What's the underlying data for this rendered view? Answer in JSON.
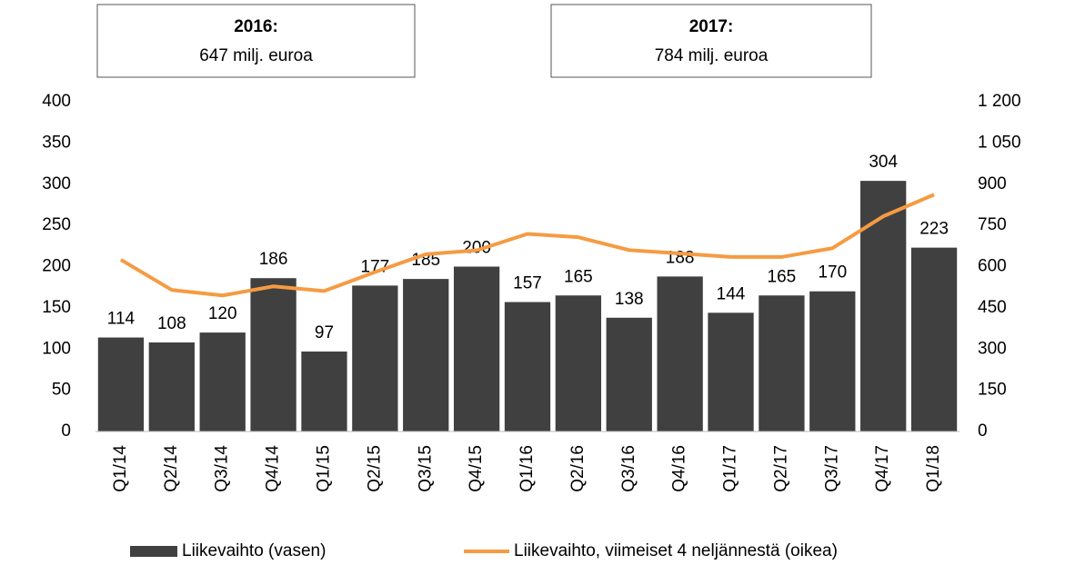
{
  "chart_data": {
    "type": "bar_line",
    "boxes": [
      {
        "title": "2016:",
        "text": "647 milj. euroa"
      },
      {
        "title": "2017:",
        "text": "784 milj. euroa"
      }
    ],
    "categories": [
      "Q1/14",
      "Q2/14",
      "Q3/14",
      "Q4/14",
      "Q1/15",
      "Q2/15",
      "Q3/15",
      "Q4/15",
      "Q1/16",
      "Q2/16",
      "Q3/16",
      "Q4/16",
      "Q1/17",
      "Q2/17",
      "Q3/17",
      "Q4/17",
      "Q1/18"
    ],
    "series": [
      {
        "name": "Liikevaihto (vasen)",
        "type": "bar",
        "color": "#404040",
        "axis": "y",
        "values": [
          114,
          108,
          120,
          186,
          97,
          177,
          185,
          200,
          157,
          165,
          138,
          188,
          144,
          165,
          170,
          304,
          223
        ]
      },
      {
        "name": "Liikevaihto, viimeiset 4 neljännestä (oikea)",
        "type": "line",
        "color": "#f59b42",
        "axis": "y2",
        "values": [
          625,
          515,
          495,
          528,
          511,
          580,
          645,
          659,
          719,
          707,
          660,
          648,
          635,
          635,
          667,
          783,
          862
        ]
      }
    ],
    "ylim": [
      0,
      400
    ],
    "yticks": [
      0,
      50,
      100,
      150,
      200,
      250,
      300,
      350,
      400
    ],
    "y2lim": [
      0,
      1200
    ],
    "y2ticks": [
      0,
      150,
      300,
      450,
      600,
      750,
      900,
      {
        "value": 1050,
        "label": "1 050"
      },
      {
        "value": 1200,
        "label": "1 200"
      }
    ],
    "legend": "bottom"
  }
}
